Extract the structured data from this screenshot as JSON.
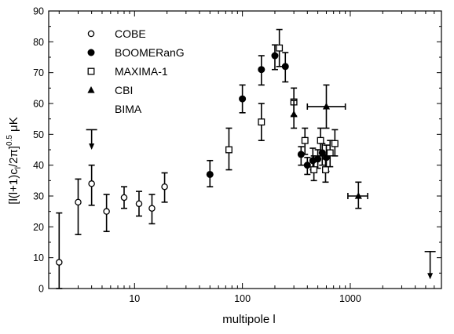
{
  "chart_data": {
    "type": "scatter",
    "title": "",
    "xlabel": "multipole l",
    "ylabel": "[l(l+1)c_l/2π]^0.5  μK",
    "x_scale": "log",
    "xlim": [
      1.6,
      7000
    ],
    "ylim": [
      0,
      90
    ],
    "x_tick_labels": [
      "10",
      "100",
      "1000"
    ],
    "y_ticks": [
      0,
      10,
      20,
      30,
      40,
      50,
      60,
      70,
      80,
      90
    ],
    "grid": false,
    "legend_position": "top-left",
    "series": [
      {
        "name": "COBE",
        "marker": "open-circle",
        "points": [
          {
            "x": 2,
            "y": 8.5,
            "ylo": 0,
            "yhi": 24.5
          },
          {
            "x": 3,
            "y": 28,
            "ylo": 17.5,
            "yhi": 35.5
          },
          {
            "x": 4,
            "y": 34,
            "ylo": 27,
            "yhi": 40
          },
          {
            "x": 5.5,
            "y": 25,
            "ylo": 18.5,
            "yhi": 30.5
          },
          {
            "x": 8,
            "y": 29.5,
            "ylo": 26,
            "yhi": 33
          },
          {
            "x": 11,
            "y": 27.5,
            "ylo": 23.5,
            "yhi": 31.5
          },
          {
            "x": 14.5,
            "y": 26,
            "ylo": 21,
            "yhi": 30.5
          },
          {
            "x": 19,
            "y": 33,
            "ylo": 28,
            "yhi": 37.5
          }
        ]
      },
      {
        "name": "BOOMERanG",
        "marker": "filled-circle",
        "points": [
          {
            "x": 50,
            "y": 37,
            "ylo": 33,
            "yhi": 41.5
          },
          {
            "x": 100,
            "y": 61.5,
            "ylo": 57,
            "yhi": 66
          },
          {
            "x": 150,
            "y": 71,
            "ylo": 66,
            "yhi": 75.5
          },
          {
            "x": 200,
            "y": 75.5,
            "ylo": 71,
            "yhi": 79
          },
          {
            "x": 250,
            "y": 72,
            "ylo": 67,
            "yhi": 76.5
          },
          {
            "x": 350,
            "y": 43.5,
            "ylo": 40,
            "yhi": 46
          },
          {
            "x": 400,
            "y": 40,
            "ylo": 37,
            "yhi": 42.5
          },
          {
            "x": 450,
            "y": 41.5,
            "ylo": 38.5,
            "yhi": 45.5
          },
          {
            "x": 500,
            "y": 42,
            "ylo": 39,
            "yhi": 45
          },
          {
            "x": 550,
            "y": 44,
            "ylo": 40,
            "yhi": 47
          },
          {
            "x": 600,
            "y": 42.5,
            "ylo": 38,
            "yhi": 46.5
          }
        ]
      },
      {
        "name": "MAXIMA-1",
        "marker": "open-square",
        "points": [
          {
            "x": 75,
            "y": 45,
            "ylo": 38.5,
            "yhi": 52
          },
          {
            "x": 150,
            "y": 54,
            "ylo": 48,
            "yhi": 60
          },
          {
            "x": 220,
            "y": 78,
            "ylo": 72,
            "yhi": 84
          },
          {
            "x": 300,
            "y": 60.5,
            "ylo": 56,
            "yhi": 65
          },
          {
            "x": 380,
            "y": 48,
            "ylo": 43.5,
            "yhi": 52
          },
          {
            "x": 460,
            "y": 38.5,
            "ylo": 35,
            "yhi": 43
          },
          {
            "x": 530,
            "y": 48,
            "ylo": 43,
            "yhi": 52
          },
          {
            "x": 590,
            "y": 38.5,
            "ylo": 34.5,
            "yhi": 42
          },
          {
            "x": 650,
            "y": 44,
            "ylo": 39.5,
            "yhi": 48
          },
          {
            "x": 720,
            "y": 47,
            "ylo": 43,
            "yhi": 51.5
          }
        ]
      },
      {
        "name": "CBI",
        "marker": "filled-triangle",
        "points": [
          {
            "x": 300,
            "y": 56.5,
            "ylo": 52,
            "yhi": 61
          },
          {
            "x": 600,
            "y": 59,
            "ylo": 52,
            "yhi": 66,
            "xlo": 400,
            "xhi": 900
          },
          {
            "x": 1190,
            "y": 30,
            "ylo": 26,
            "yhi": 34.5,
            "xlo": 950,
            "xhi": 1450
          }
        ]
      },
      {
        "name": "BIMA",
        "marker": "none",
        "points": []
      }
    ],
    "upper_limits": [
      {
        "x": 4,
        "y": 51.5,
        "arrow_to": 45
      },
      {
        "x": 5500,
        "y": 12,
        "arrow_to": 3
      }
    ]
  }
}
